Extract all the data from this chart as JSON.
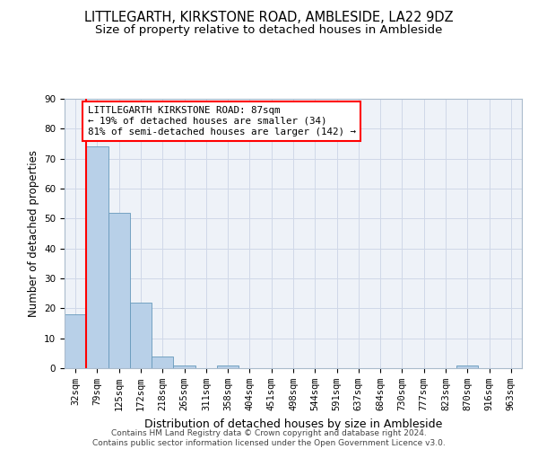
{
  "title1": "LITTLEGARTH, KIRKSTONE ROAD, AMBLESIDE, LA22 9DZ",
  "title2": "Size of property relative to detached houses in Ambleside",
  "xlabel": "Distribution of detached houses by size in Ambleside",
  "ylabel": "Number of detached properties",
  "categories": [
    "32sqm",
    "79sqm",
    "125sqm",
    "172sqm",
    "218sqm",
    "265sqm",
    "311sqm",
    "358sqm",
    "404sqm",
    "451sqm",
    "498sqm",
    "544sqm",
    "591sqm",
    "637sqm",
    "684sqm",
    "730sqm",
    "777sqm",
    "823sqm",
    "870sqm",
    "916sqm",
    "963sqm"
  ],
  "values": [
    18,
    74,
    52,
    22,
    4,
    1,
    0,
    1,
    0,
    0,
    0,
    0,
    0,
    0,
    0,
    0,
    0,
    0,
    1,
    0,
    0
  ],
  "bar_color": "#b8d0e8",
  "bar_edge_color": "#6699bb",
  "annotation_line1": "LITTLEGARTH KIRKSTONE ROAD: 87sqm",
  "annotation_line2": "← 19% of detached houses are smaller (34)",
  "annotation_line3": "81% of semi-detached houses are larger (142) →",
  "annotation_box_color": "white",
  "annotation_box_edge": "red",
  "line_color": "red",
  "ylim": [
    0,
    90
  ],
  "yticks": [
    0,
    10,
    20,
    30,
    40,
    50,
    60,
    70,
    80,
    90
  ],
  "footer1": "Contains HM Land Registry data © Crown copyright and database right 2024.",
  "footer2": "Contains public sector information licensed under the Open Government Licence v3.0.",
  "background_color": "#eef2f8",
  "grid_color": "#d0d8e8",
  "title_fontsize": 10.5,
  "subtitle_fontsize": 9.5,
  "ylabel_fontsize": 8.5,
  "xlabel_fontsize": 9,
  "tick_fontsize": 7.5,
  "annotation_fontsize": 7.8,
  "footer_fontsize": 6.5
}
